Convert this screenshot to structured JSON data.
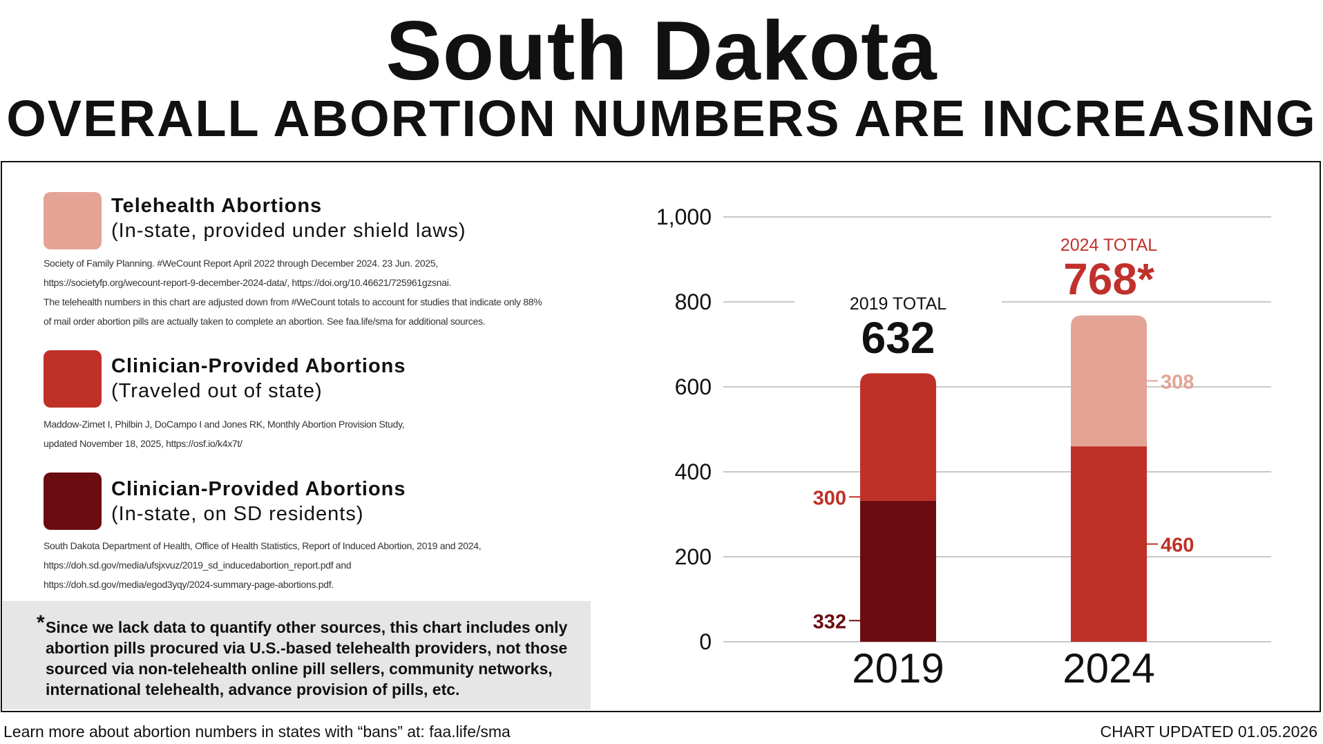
{
  "header": {
    "title": "South Dakota",
    "subtitle": "OVERALL ABORTION NUMBERS ARE INCREASING"
  },
  "legend": [
    {
      "title": "Telehealth Abortions",
      "subtitle": "(In-state, provided under shield laws)",
      "color": "#e3a395",
      "source_lines": [
        "Society of Family Planning. #WeCount Report April 2022 through December 2024. 23 Jun. 2025,",
        "https://societyfp.org/wecount-report-9-december-2024-data/, https://doi.org/10.46621/725961gzsnai.",
        "The telehealth numbers in this chart are adjusted down from #WeCount totals to account for studies that indicate only 88%",
        "of mail order abortion pills are actually taken to complete an abortion. See faa.life/sma for additional sources."
      ]
    },
    {
      "title": "Clinician-Provided Abortions",
      "subtitle": "(Traveled out of state)",
      "color": "#bf3027",
      "source_lines": [
        "Maddow-Zimet I, Philbin J, DoCampo I and Jones RK, Monthly Abortion Provision Study,",
        "updated November 18, 2025, https://osf.io/k4x7t/"
      ]
    },
    {
      "title": "Clinician-Provided Abortions",
      "subtitle": "(In-state, on SD residents)",
      "color": "#6b0c10",
      "source_lines": [
        "South Dakota Department of Health, Office of Health Statistics, Report of Induced Abortion, 2019 and 2024,",
        "https://doh.sd.gov/media/ufsjxvuz/2019_sd_inducedabortion_report.pdf and",
        "https://doh.sd.gov/media/egod3yqy/2024-summary-page-abortions.pdf."
      ]
    }
  ],
  "note": {
    "star": "*",
    "text": "Since we lack data to quantify other sources, this chart includes only abortion pills procured via U.S.-based telehealth providers, not those sourced via non-telehealth online pill sellers, community networks, international telehealth, advance provision of pills, etc."
  },
  "footer": {
    "left": "Learn more about abortion numbers in states with “bans” at: faa.life/sma",
    "right": "CHART UPDATED 01.05.2026"
  },
  "chart_data": {
    "type": "bar",
    "stacked": true,
    "categories": [
      "2019",
      "2024"
    ],
    "ylim": [
      0,
      1000
    ],
    "yticks": [
      0,
      200,
      400,
      600,
      800,
      1000
    ],
    "ytick_labels": [
      "0",
      "200",
      "400",
      "600",
      "800",
      "1,000"
    ],
    "grid": true,
    "series": [
      {
        "key": "instate",
        "values": [
          332,
          0
        ],
        "color": "#6b0c10",
        "label_color": "#6b0c10"
      },
      {
        "key": "traveled",
        "values": [
          300,
          460
        ],
        "color": "#bf3027",
        "label_color": "#bf3027"
      },
      {
        "key": "telehealth",
        "values": [
          0,
          308
        ],
        "color": "#e3a395",
        "label_color": "#e3a395"
      }
    ],
    "totals": [
      {
        "label": "2019 TOTAL",
        "value": "632",
        "color": "#111111"
      },
      {
        "label": "2024 TOTAL",
        "value": "768*",
        "color": "#c0312b"
      }
    ]
  }
}
